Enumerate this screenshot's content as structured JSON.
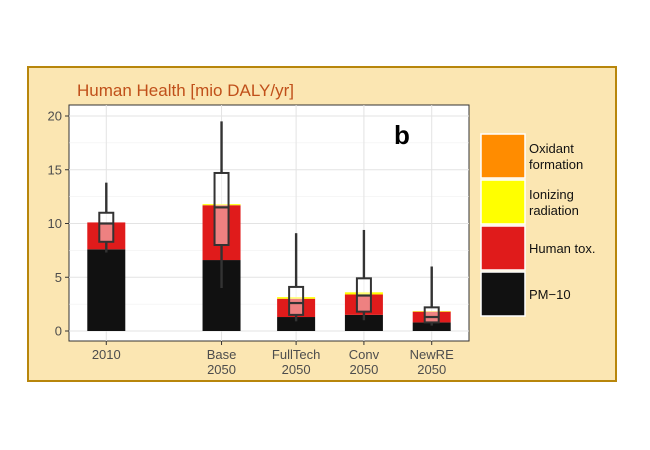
{
  "chart_data": {
    "type": "bar",
    "title": "Human Health [mio DALY/yr]",
    "panel_label": "b",
    "xlabel": "",
    "ylabel": "",
    "ylim": [
      0,
      20
    ],
    "yticks": [
      0,
      5,
      10,
      15,
      20
    ],
    "grid": true,
    "legend_position": "right",
    "categories": [
      {
        "id": "2010",
        "line1": "2010",
        "line2": ""
      },
      {
        "id": "Base2050",
        "line1": "Base",
        "line2": "2050"
      },
      {
        "id": "FullTech2050",
        "line1": "FullTech",
        "line2": "2050"
      },
      {
        "id": "Conv2050",
        "line1": "Conv",
        "line2": "2050"
      },
      {
        "id": "NewRE2050",
        "line1": "NewRE",
        "line2": "2050"
      }
    ],
    "category_positions": [
      1,
      2.7,
      3.8,
      4.8,
      5.8
    ],
    "series": [
      {
        "name": "PM−10",
        "key": "pm10",
        "color": "#111111",
        "values": [
          7.6,
          6.6,
          1.3,
          1.5,
          0.8
        ]
      },
      {
        "name": "Human tox.",
        "key": "human_tox",
        "color": "#e01b1b",
        "values": [
          2.5,
          5.1,
          1.7,
          1.9,
          1.0
        ]
      },
      {
        "name": "Ionizing radiation",
        "key": "ionizing",
        "color": "#ffff00",
        "values": [
          0.0,
          0.1,
          0.15,
          0.2,
          0.05
        ]
      },
      {
        "name": "Oxidant formation",
        "key": "oxidant",
        "color": "#ff8c00",
        "values": [
          0.0,
          0.0,
          0.0,
          0.0,
          0.0
        ]
      }
    ],
    "legend": [
      {
        "line1": "Oxidant",
        "line2": "formation",
        "color": "#ff8c00"
      },
      {
        "line1": "Ionizing",
        "line2": "radiation",
        "color": "#ffff00"
      },
      {
        "line1": "Human tox.",
        "line2": "",
        "color": "#e01b1b"
      },
      {
        "line1": "PM−10",
        "line2": "",
        "color": "#111111"
      }
    ],
    "uncertainty": [
      {
        "whisker_low": 7.3,
        "box_low": 8.3,
        "median": 10.0,
        "box_high": 11.0,
        "whisker_high": 13.8
      },
      {
        "whisker_low": 4.0,
        "box_low": 8.0,
        "median": 11.5,
        "box_high": 14.7,
        "whisker_high": 19.5
      },
      {
        "whisker_low": 0.9,
        "box_low": 1.5,
        "median": 2.6,
        "box_high": 4.1,
        "whisker_high": 9.1
      },
      {
        "whisker_low": 1.0,
        "box_low": 1.8,
        "median": 3.3,
        "box_high": 4.9,
        "whisker_high": 9.4
      },
      {
        "whisker_low": 0.5,
        "box_low": 0.8,
        "median": 1.3,
        "box_high": 2.2,
        "whisker_high": 6.0
      }
    ]
  }
}
